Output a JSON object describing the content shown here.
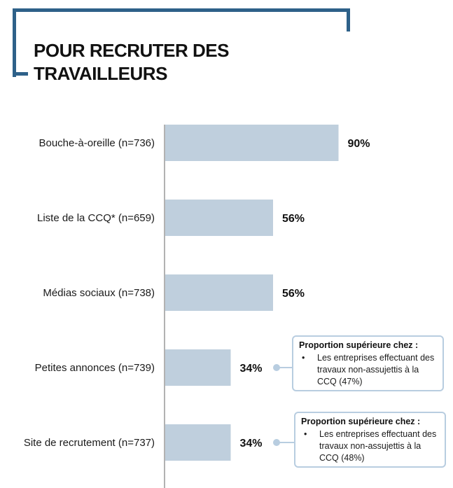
{
  "title": "POUR RECRUTER DES TRAVAILLEURS",
  "chart_data": {
    "type": "bar",
    "orientation": "horizontal",
    "categories": [
      "Bouche-à-oreille (n=736)",
      "Liste de la CCQ* (n=659)",
      "Médias sociaux (n=738)",
      "Petites annonces (n=739)",
      "Site de recrutement (n=737)"
    ],
    "values": [
      90,
      56,
      56,
      34,
      34
    ],
    "value_labels": [
      "90%",
      "56%",
      "56%",
      "34%",
      "34%"
    ],
    "xlim": [
      0,
      100
    ],
    "bar_color": "#bfcfdd",
    "grid": false
  },
  "callouts": [
    {
      "category_index": 3,
      "heading": "Proportion supérieure chez :",
      "text": "Les entreprises effectuant des travaux non-assujettis à la CCQ (47%)"
    },
    {
      "category_index": 4,
      "heading": "Proportion supérieure chez :",
      "text": "Les entreprises effectuant des travaux non-assujettis à la CCQ (48%)"
    }
  ]
}
